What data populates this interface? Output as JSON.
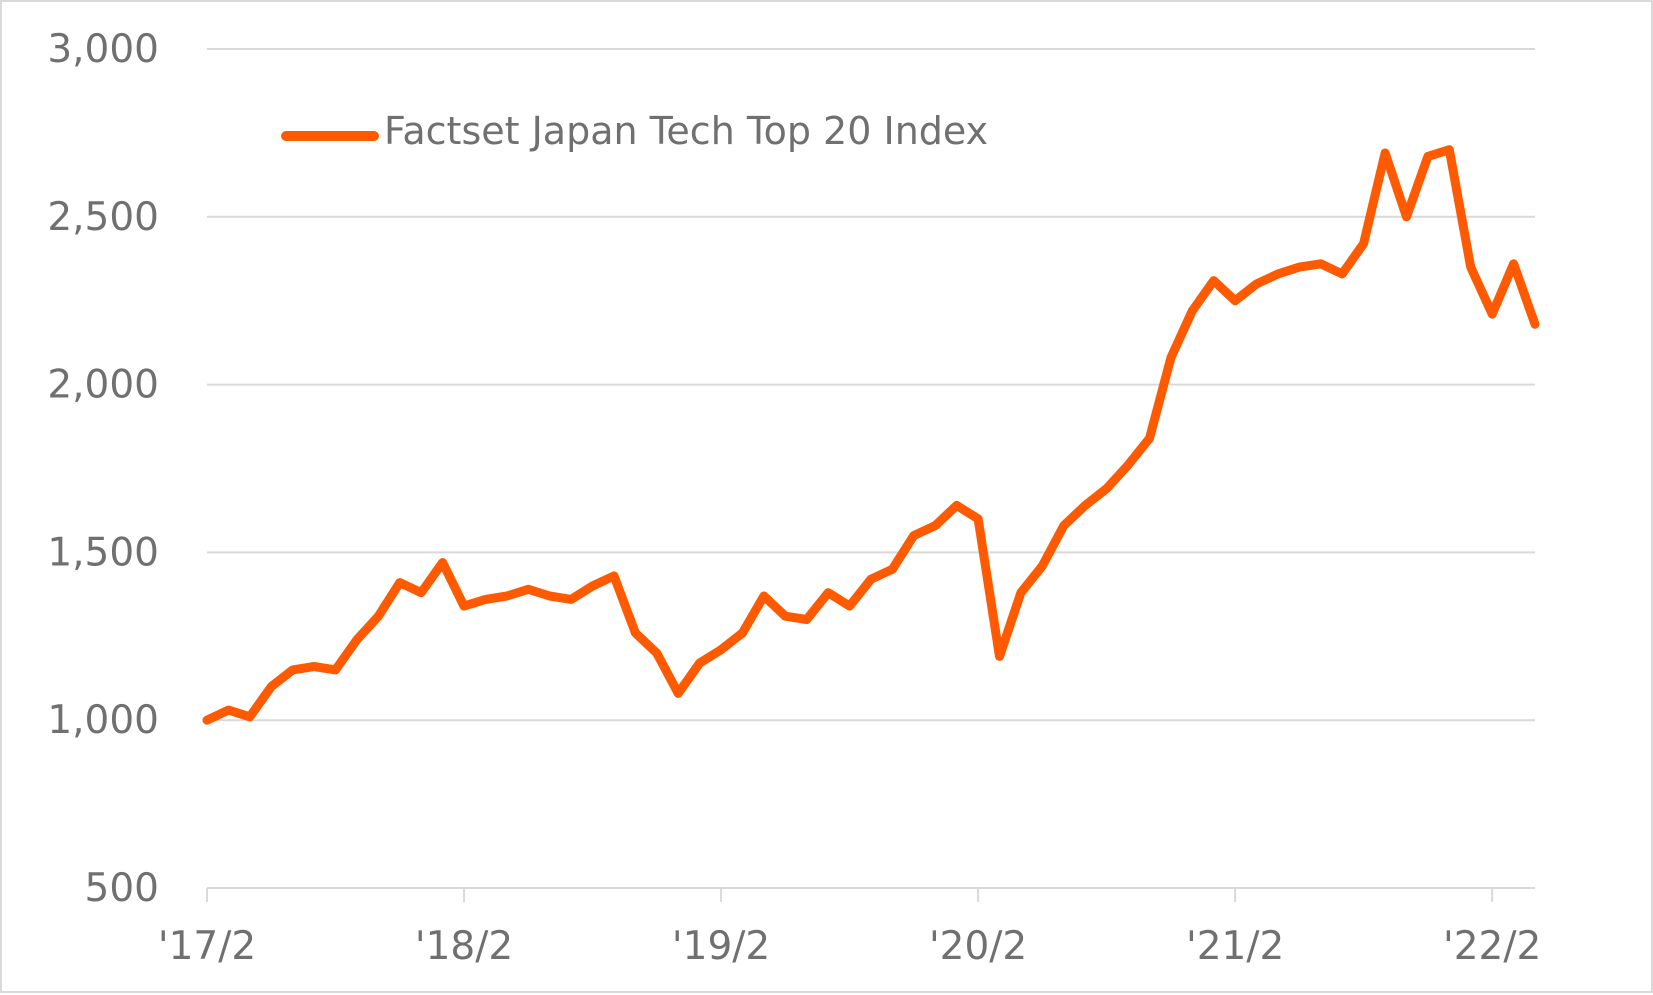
{
  "chart_data": {
    "type": "line",
    "title": "",
    "xlabel": "",
    "ylabel": "",
    "ylim": [
      500,
      3000
    ],
    "yticks": [
      500,
      1000,
      1500,
      2000,
      2500,
      3000
    ],
    "ytick_labels": [
      "500",
      "1,000",
      "1,500",
      "2,000",
      "2,500",
      "3,000"
    ],
    "x_range": [
      "2017-02",
      "2022-04"
    ],
    "xticks": [
      "2017-02",
      "2018-02",
      "2019-02",
      "2020-02",
      "2021-02",
      "2022-02"
    ],
    "xtick_labels": [
      "'17/2",
      "'18/2",
      "'19/2",
      "'20/2",
      "'21/2",
      "'22/2"
    ],
    "grid": "horizontal",
    "legend_position": "top-left",
    "colors": {
      "series": "#ff5a00",
      "grid": "#d9d9d9",
      "text": "#707070"
    },
    "series": [
      {
        "name": "Factset Japan Tech Top 20 Index",
        "x": [
          "2017-02",
          "2017-03",
          "2017-04",
          "2017-05",
          "2017-06",
          "2017-07",
          "2017-08",
          "2017-09",
          "2017-10",
          "2017-11",
          "2017-12",
          "2018-01",
          "2018-02",
          "2018-03",
          "2018-04",
          "2018-05",
          "2018-06",
          "2018-07",
          "2018-08",
          "2018-09",
          "2018-10",
          "2018-11",
          "2018-12",
          "2019-01",
          "2019-02",
          "2019-03",
          "2019-04",
          "2019-05",
          "2019-06",
          "2019-07",
          "2019-08",
          "2019-09",
          "2019-10",
          "2019-11",
          "2019-12",
          "2020-01",
          "2020-02",
          "2020-03",
          "2020-04",
          "2020-05",
          "2020-06",
          "2020-07",
          "2020-08",
          "2020-09",
          "2020-10",
          "2020-11",
          "2020-12",
          "2021-01",
          "2021-02",
          "2021-03",
          "2021-04",
          "2021-05",
          "2021-06",
          "2021-07",
          "2021-08",
          "2021-09",
          "2021-10",
          "2021-11",
          "2021-12",
          "2022-01",
          "2022-02",
          "2022-03",
          "2022-04"
        ],
        "y": [
          1000,
          1030,
          1010,
          1100,
          1150,
          1160,
          1150,
          1240,
          1310,
          1410,
          1380,
          1470,
          1340,
          1360,
          1370,
          1390,
          1370,
          1360,
          1400,
          1430,
          1260,
          1200,
          1080,
          1170,
          1210,
          1260,
          1370,
          1310,
          1300,
          1380,
          1340,
          1420,
          1450,
          1550,
          1580,
          1640,
          1600,
          1190,
          1380,
          1460,
          1580,
          1640,
          1690,
          1760,
          1840,
          2080,
          2220,
          2310,
          2250,
          2300,
          2330,
          2350,
          2360,
          2330,
          2420,
          2690,
          2500,
          2680,
          2700,
          2350,
          2210,
          2360,
          2180
        ]
      }
    ]
  }
}
